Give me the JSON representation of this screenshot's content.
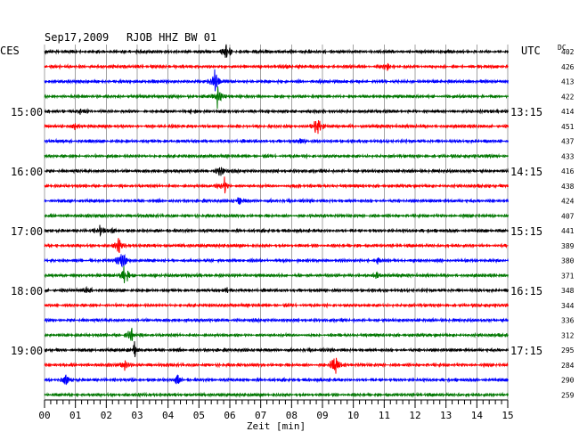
{
  "header": {
    "date": "Sep17,2009",
    "station": "RJOB HHZ BW 01",
    "left_timezone": "CES",
    "right_timezone": "UTC",
    "dc_label": "DC"
  },
  "chart_data": {
    "type": "line",
    "title": "Sep17,2009  RJOB HHZ BW 01",
    "xlabel": "Zeit [min]",
    "xlim": [
      0,
      15
    ],
    "x_ticks": [
      "00",
      "01",
      "02",
      "03",
      "04",
      "05",
      "06",
      "07",
      "08",
      "09",
      "10",
      "11",
      "12",
      "13",
      "14",
      "15"
    ],
    "trace_count": 24,
    "trace_colors": [
      "#000000",
      "#ff0000",
      "#0000ff",
      "#007700"
    ],
    "left_hour_labels": [
      {
        "trace": 4,
        "label": "15:00"
      },
      {
        "trace": 8,
        "label": "16:00"
      },
      {
        "trace": 12,
        "label": "17:00"
      },
      {
        "trace": 16,
        "label": "18:00"
      },
      {
        "trace": 20,
        "label": "19:00"
      }
    ],
    "right_hour_labels": [
      {
        "trace": 4,
        "label": "13:15"
      },
      {
        "trace": 8,
        "label": "14:15"
      },
      {
        "trace": 12,
        "label": "15:15"
      },
      {
        "trace": 16,
        "label": "16:15"
      },
      {
        "trace": 20,
        "label": "17:15"
      }
    ],
    "dc_offsets": [
      402,
      426,
      413,
      422,
      414,
      451,
      437,
      433,
      416,
      438,
      424,
      407,
      441,
      389,
      380,
      371,
      348,
      344,
      336,
      312,
      295,
      284,
      290,
      259
    ],
    "events": [
      {
        "trace": 0,
        "minute": 5.9,
        "amplitude": 10
      },
      {
        "trace": 1,
        "minute": 11.1,
        "amplitude": 4
      },
      {
        "trace": 2,
        "minute": 5.5,
        "amplitude": 18
      },
      {
        "trace": 3,
        "minute": 5.6,
        "amplitude": 14
      },
      {
        "trace": 4,
        "minute": 1.2,
        "amplitude": 3
      },
      {
        "trace": 4,
        "minute": 4.8,
        "amplitude": 4
      },
      {
        "trace": 5,
        "minute": 1.0,
        "amplitude": 4
      },
      {
        "trace": 5,
        "minute": 8.8,
        "amplitude": 18
      },
      {
        "trace": 6,
        "minute": 8.3,
        "amplitude": 3
      },
      {
        "trace": 8,
        "minute": 5.7,
        "amplitude": 8
      },
      {
        "trace": 9,
        "minute": 5.8,
        "amplitude": 14
      },
      {
        "trace": 9,
        "minute": 8.3,
        "amplitude": 5
      },
      {
        "trace": 10,
        "minute": 6.3,
        "amplitude": 4
      },
      {
        "trace": 12,
        "minute": 1.8,
        "amplitude": 6
      },
      {
        "trace": 12,
        "minute": 2.3,
        "amplitude": 3
      },
      {
        "trace": 13,
        "minute": 2.4,
        "amplitude": 8
      },
      {
        "trace": 14,
        "minute": 2.5,
        "amplitude": 16
      },
      {
        "trace": 14,
        "minute": 10.8,
        "amplitude": 4
      },
      {
        "trace": 15,
        "minute": 2.6,
        "amplitude": 14
      },
      {
        "trace": 15,
        "minute": 10.8,
        "amplitude": 5
      },
      {
        "trace": 16,
        "minute": 1.4,
        "amplitude": 4
      },
      {
        "trace": 16,
        "minute": 5.9,
        "amplitude": 3
      },
      {
        "trace": 19,
        "minute": 2.8,
        "amplitude": 10
      },
      {
        "trace": 20,
        "minute": 2.9,
        "amplitude": 12
      },
      {
        "trace": 21,
        "minute": 2.6,
        "amplitude": 5
      },
      {
        "trace": 21,
        "minute": 9.4,
        "amplitude": 14
      },
      {
        "trace": 22,
        "minute": 0.7,
        "amplitude": 6
      },
      {
        "trace": 22,
        "minute": 4.3,
        "amplitude": 5
      }
    ]
  }
}
